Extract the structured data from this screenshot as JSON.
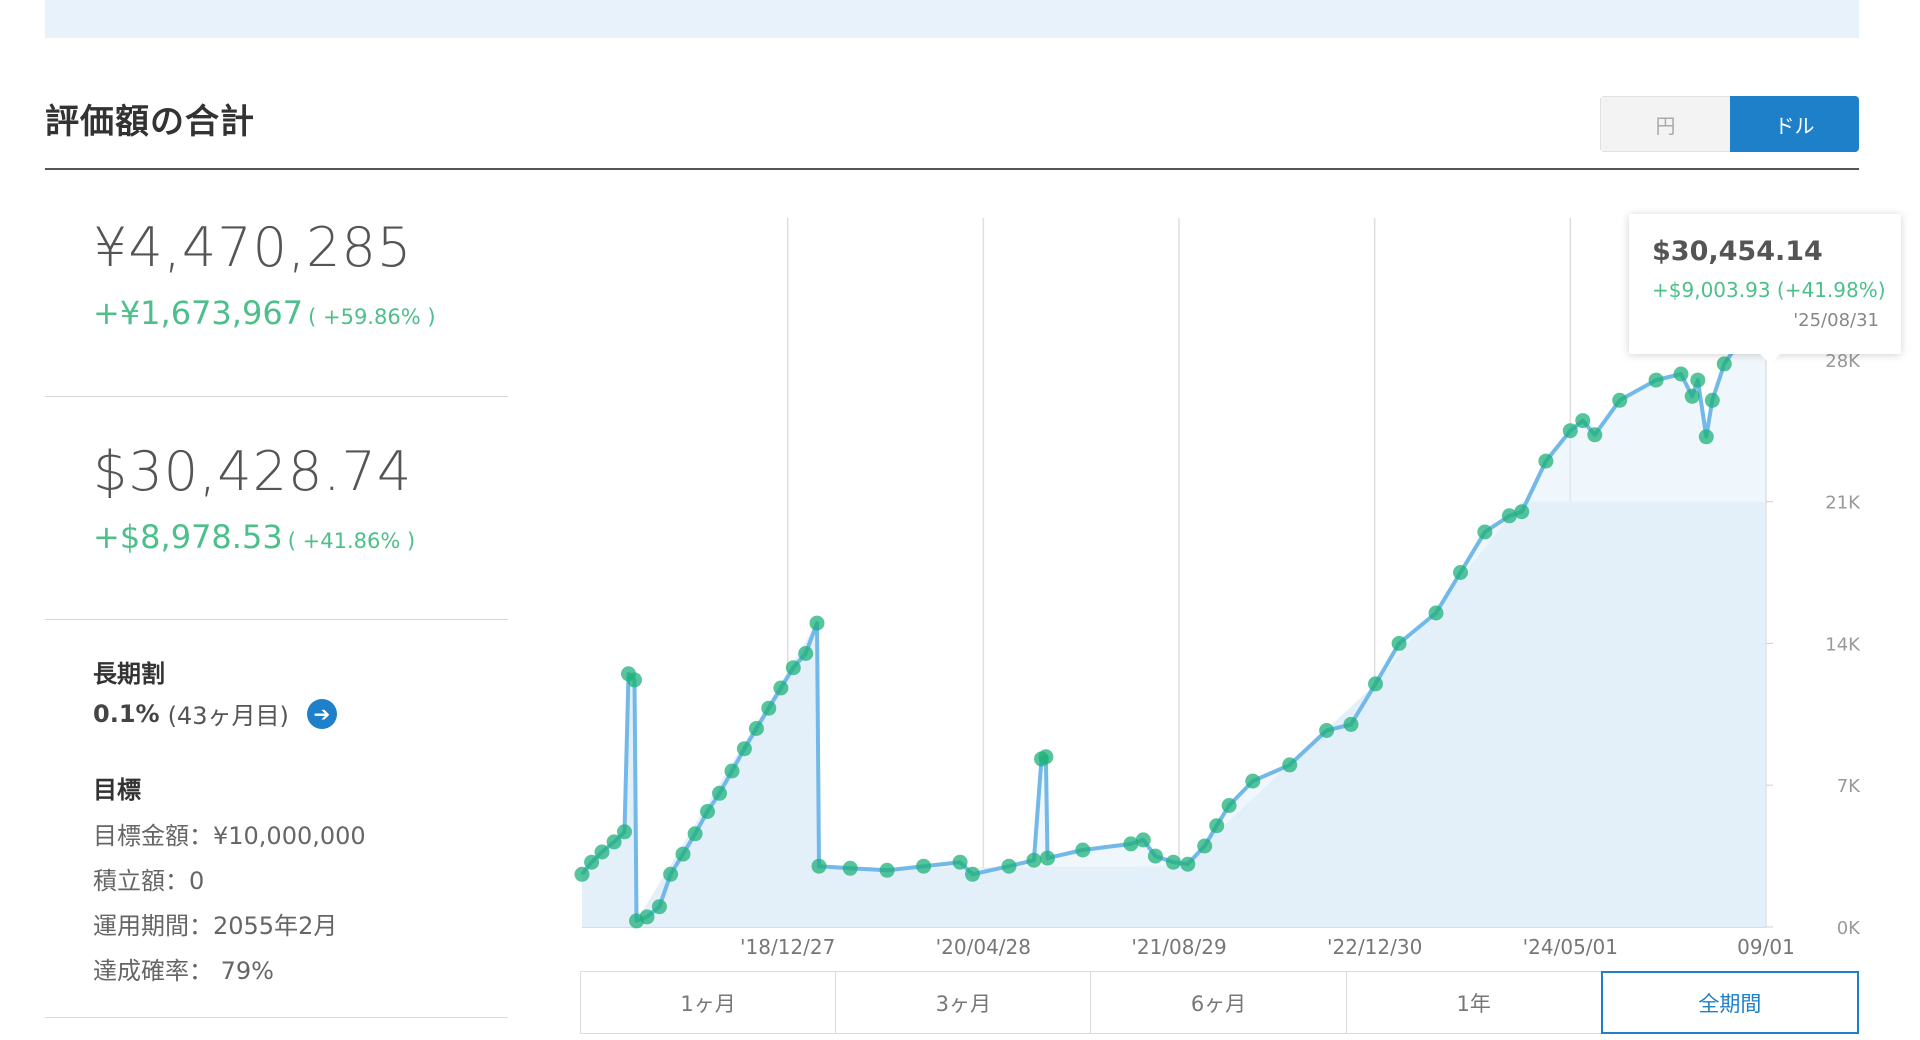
{
  "header": {
    "title": "評価額の合計"
  },
  "currency_toggle": {
    "yen_label": "円",
    "usd_label": "ドル",
    "selected": "ドル"
  },
  "summary": {
    "yen_total": "¥4,470,285",
    "yen_gain": "+¥1,673,967",
    "yen_gain_pct": "( +59.86% )",
    "usd_total": "$30,428.74",
    "usd_gain": "+$8,978.53",
    "usd_gain_pct": "( +41.86% )"
  },
  "long_term": {
    "label": "長期割",
    "rate": "0.1%",
    "months": "(43ヶ月目)"
  },
  "goal": {
    "label": "目標",
    "amount": "目標金額：¥10,000,000",
    "contribution": "積立額：0",
    "period": "運用期間：2055年2月",
    "probability": "達成確率： 79%"
  },
  "tooltip": {
    "value": "$30,454.14",
    "gain": "+$9,003.93 (+41.98%)",
    "date": "'25/08/31"
  },
  "periods": {
    "selected": "全期間",
    "items": [
      "1ヶ月",
      "3ヶ月",
      "6ヶ月",
      "1年",
      "全期間"
    ]
  },
  "colors": {
    "accent": "#1e80c8",
    "gain": "#4cbf8a",
    "line": "#72b8e8",
    "fill": "#e3f0fa",
    "marker": "#1fb27a"
  },
  "chart_data": {
    "type": "area",
    "x_tick_labels": [
      "'18/12/27",
      "'20/04/28",
      "'21/08/29",
      "'22/12/30",
      "'24/05/01",
      "09/01"
    ],
    "y_tick_labels": [
      "0K",
      "7K",
      "14K",
      "21K",
      "28K"
    ],
    "ylim": [
      0,
      35000
    ],
    "grid": true,
    "series": [
      {
        "role": "valuation",
        "points": [
          [
            "2017-08-01",
            2600
          ],
          [
            "2017-08-25",
            3200
          ],
          [
            "2017-09-20",
            3700
          ],
          [
            "2017-10-20",
            4200
          ],
          [
            "2017-11-15",
            4700
          ],
          [
            "2017-11-25",
            12500
          ],
          [
            "2017-12-10",
            12200
          ],
          [
            "2017-12-15",
            300
          ],
          [
            "2018-01-10",
            500
          ],
          [
            "2018-02-10",
            1000
          ],
          [
            "2018-03-10",
            2600
          ],
          [
            "2018-04-10",
            3600
          ],
          [
            "2018-05-10",
            4600
          ],
          [
            "2018-06-10",
            5700
          ],
          [
            "2018-07-10",
            6600
          ],
          [
            "2018-08-10",
            7700
          ],
          [
            "2018-09-10",
            8800
          ],
          [
            "2018-10-10",
            9800
          ],
          [
            "2018-11-10",
            10800
          ],
          [
            "2018-12-10",
            11800
          ],
          [
            "2019-01-10",
            12800
          ],
          [
            "2019-02-10",
            13500
          ],
          [
            "2019-03-10",
            15000
          ],
          [
            "2019-03-15",
            3000
          ],
          [
            "2019-06-01",
            2900
          ],
          [
            "2019-09-01",
            2800
          ],
          [
            "2019-12-01",
            3000
          ],
          [
            "2020-03-01",
            3200
          ],
          [
            "2020-04-01",
            2600
          ],
          [
            "2020-07-01",
            3000
          ],
          [
            "2020-09-01",
            3300
          ],
          [
            "2020-09-20",
            8300
          ],
          [
            "2020-10-01",
            8400
          ],
          [
            "2020-10-05",
            3400
          ],
          [
            "2021-01-01",
            3800
          ],
          [
            "2021-05-01",
            4100
          ],
          [
            "2021-06-01",
            4300
          ],
          [
            "2021-07-01",
            3500
          ],
          [
            "2021-08-15",
            3200
          ],
          [
            "2021-09-20",
            3100
          ],
          [
            "2021-11-01",
            4000
          ],
          [
            "2021-12-01",
            5000
          ],
          [
            "2022-01-01",
            6000
          ],
          [
            "2022-03-01",
            7200
          ],
          [
            "2022-06-01",
            8000
          ],
          [
            "2022-09-01",
            9700
          ],
          [
            "2022-11-01",
            10000
          ],
          [
            "2023-01-01",
            12000
          ],
          [
            "2023-03-01",
            14000
          ],
          [
            "2023-06-01",
            15500
          ],
          [
            "2023-08-01",
            17500
          ],
          [
            "2023-10-01",
            19500
          ],
          [
            "2023-12-01",
            20300
          ],
          [
            "2024-01-01",
            20500
          ],
          [
            "2024-03-01",
            23000
          ],
          [
            "2024-05-01",
            24500
          ],
          [
            "2024-06-01",
            25000
          ],
          [
            "2024-07-01",
            24300
          ],
          [
            "2024-09-01",
            26000
          ],
          [
            "2024-12-01",
            27000
          ],
          [
            "2025-02-01",
            27300
          ],
          [
            "2025-03-01",
            26200
          ],
          [
            "2025-03-15",
            27000
          ],
          [
            "2025-04-05",
            24200
          ],
          [
            "2025-04-20",
            26000
          ],
          [
            "2025-05-20",
            27800
          ],
          [
            "2025-07-01",
            29000
          ],
          [
            "2025-08-31",
            30454
          ]
        ]
      },
      {
        "role": "principal",
        "points": [
          [
            "2017-08-01",
            2600
          ],
          [
            "2017-11-15",
            4700
          ],
          [
            "2017-11-25",
            12500
          ],
          [
            "2017-12-10",
            12200
          ],
          [
            "2017-12-15",
            300
          ],
          [
            "2019-03-10",
            15000
          ],
          [
            "2019-03-15",
            2900
          ],
          [
            "2021-09-01",
            3000
          ],
          [
            "2023-01-01",
            12000
          ],
          [
            "2024-01-01",
            21000
          ],
          [
            "2025-08-31",
            21000
          ]
        ]
      }
    ]
  }
}
